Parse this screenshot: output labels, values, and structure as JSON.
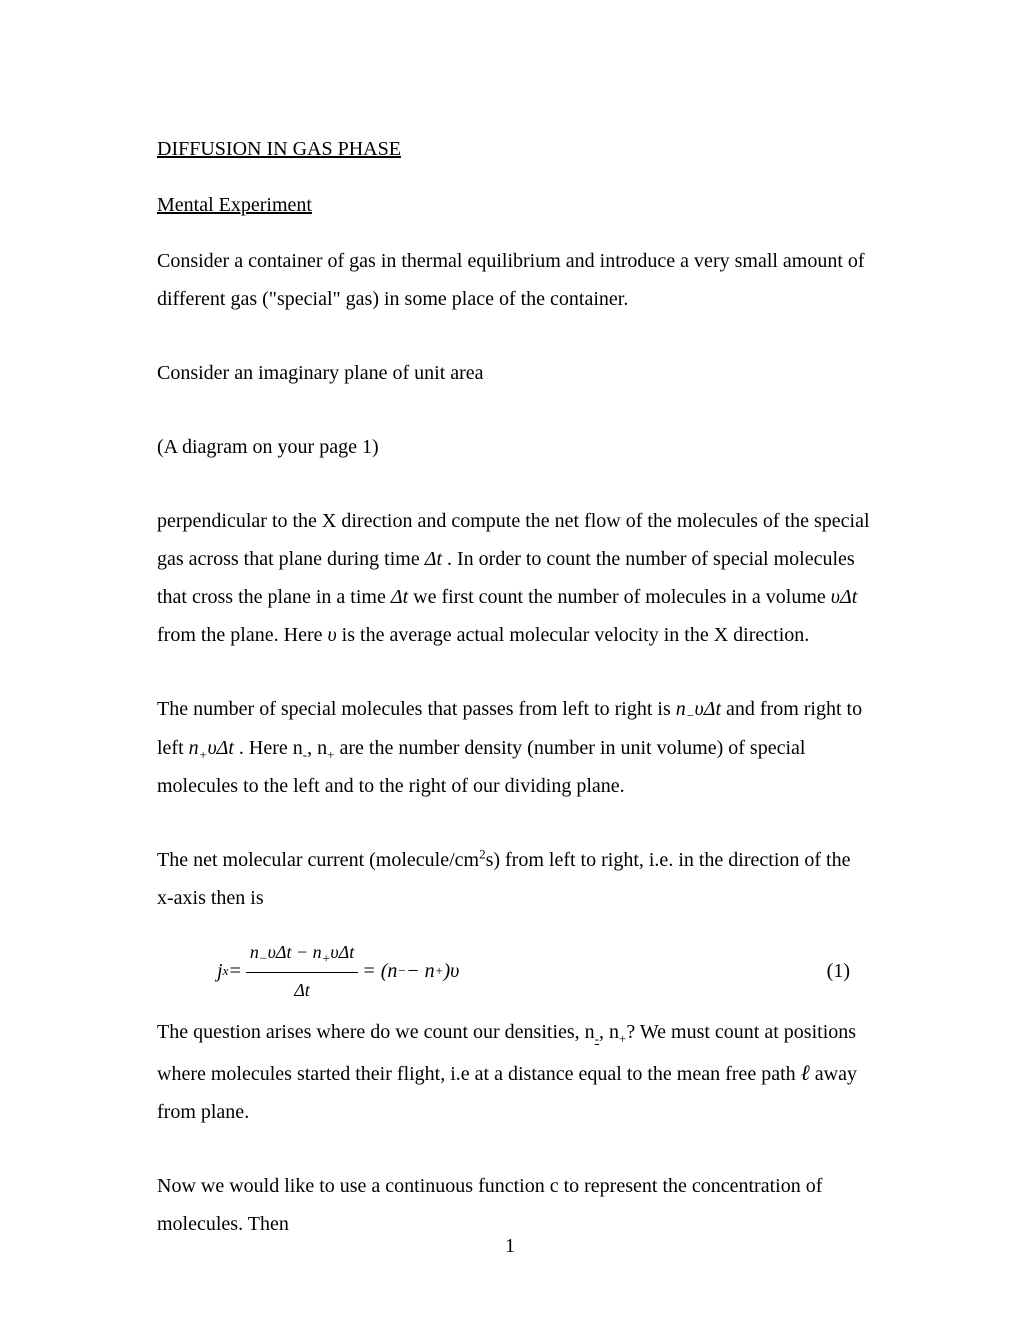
{
  "document": {
    "title": "DIFFUSION IN GAS PHASE",
    "subtitle": "Mental Experiment",
    "paragraphs": {
      "p1": "Consider a container of gas in thermal equilibrium and introduce a very small amount of different gas (\"special\" gas) in some place of the container.",
      "p2": "Consider an imaginary plane of unit area",
      "p3": "(A diagram on your page 1)",
      "p4_part1": "perpendicular to the X direction and compute the net flow of the molecules of the special gas across that plane during time ",
      "p4_var1": "Δt",
      "p4_part2": " .  In order to count the number of special molecules that cross the plane in a time ",
      "p4_var2": "Δt",
      "p4_part3": " we first count the number of molecules in a volume ",
      "p4_var3": "υΔt",
      "p4_part4": " from the plane.  Here ",
      "p4_var4": "υ",
      "p4_part5": " is the average actual molecular velocity in the X direction.",
      "p5_part1": "The number of special molecules that passes from left to right is ",
      "p5_var1_base": "n",
      "p5_var1_sub": "−",
      "p5_var1_rest": "υΔt",
      "p5_part2": " and from right to left  ",
      "p5_var2_base": "n",
      "p5_var2_sub": "+",
      "p5_var2_rest": "υΔt",
      "p5_part3": " .  Here n",
      "p5_sub_minus": "-",
      "p5_part3b": ", n",
      "p5_sub_plus": "+",
      "p5_part4": " are the number density (number in unit volume) of special molecules to the left and to the right of our dividing plane.",
      "p6_part1": "The net molecular current (molecule/cm",
      "p6_sup": "2",
      "p6_part2": "s) from left to right, i.e. in the direction of the x-axis then is",
      "p7_part1": "The question arises where do we count our densities, n",
      "p7_sub1": "-",
      "p7_part1b": ", n",
      "p7_sub2": "+",
      "p7_part2": "?  We must count at positions where molecules started their flight, i.e at a distance equal to the  mean free path ",
      "p7_var": "ℓ",
      "p7_part3": " away from plane.",
      "p8": "Now we would like to use a continuous function c to represent the concentration of molecules.  Then"
    },
    "equation": {
      "lhs_var": "j",
      "lhs_sub": "x",
      "equals": " = ",
      "num": "n₋υΔt − n₊υΔt",
      "num_n": "n",
      "num_minus_sub": "−",
      "num_v": "υΔt − n",
      "num_plus_sub": "+",
      "num_v2": "υΔt",
      "den": "Δt",
      "rhs_eq": " = (n",
      "rhs_minus_sub": "−",
      "rhs_mid": " − n",
      "rhs_plus_sub": "+",
      "rhs_end": ")υ",
      "number": "(1)"
    },
    "page_number": "1",
    "colors": {
      "background": "#ffffff",
      "text": "#000000"
    },
    "typography": {
      "font_family": "Times New Roman",
      "body_fontsize_pt": 15,
      "line_height": 1.9
    }
  }
}
